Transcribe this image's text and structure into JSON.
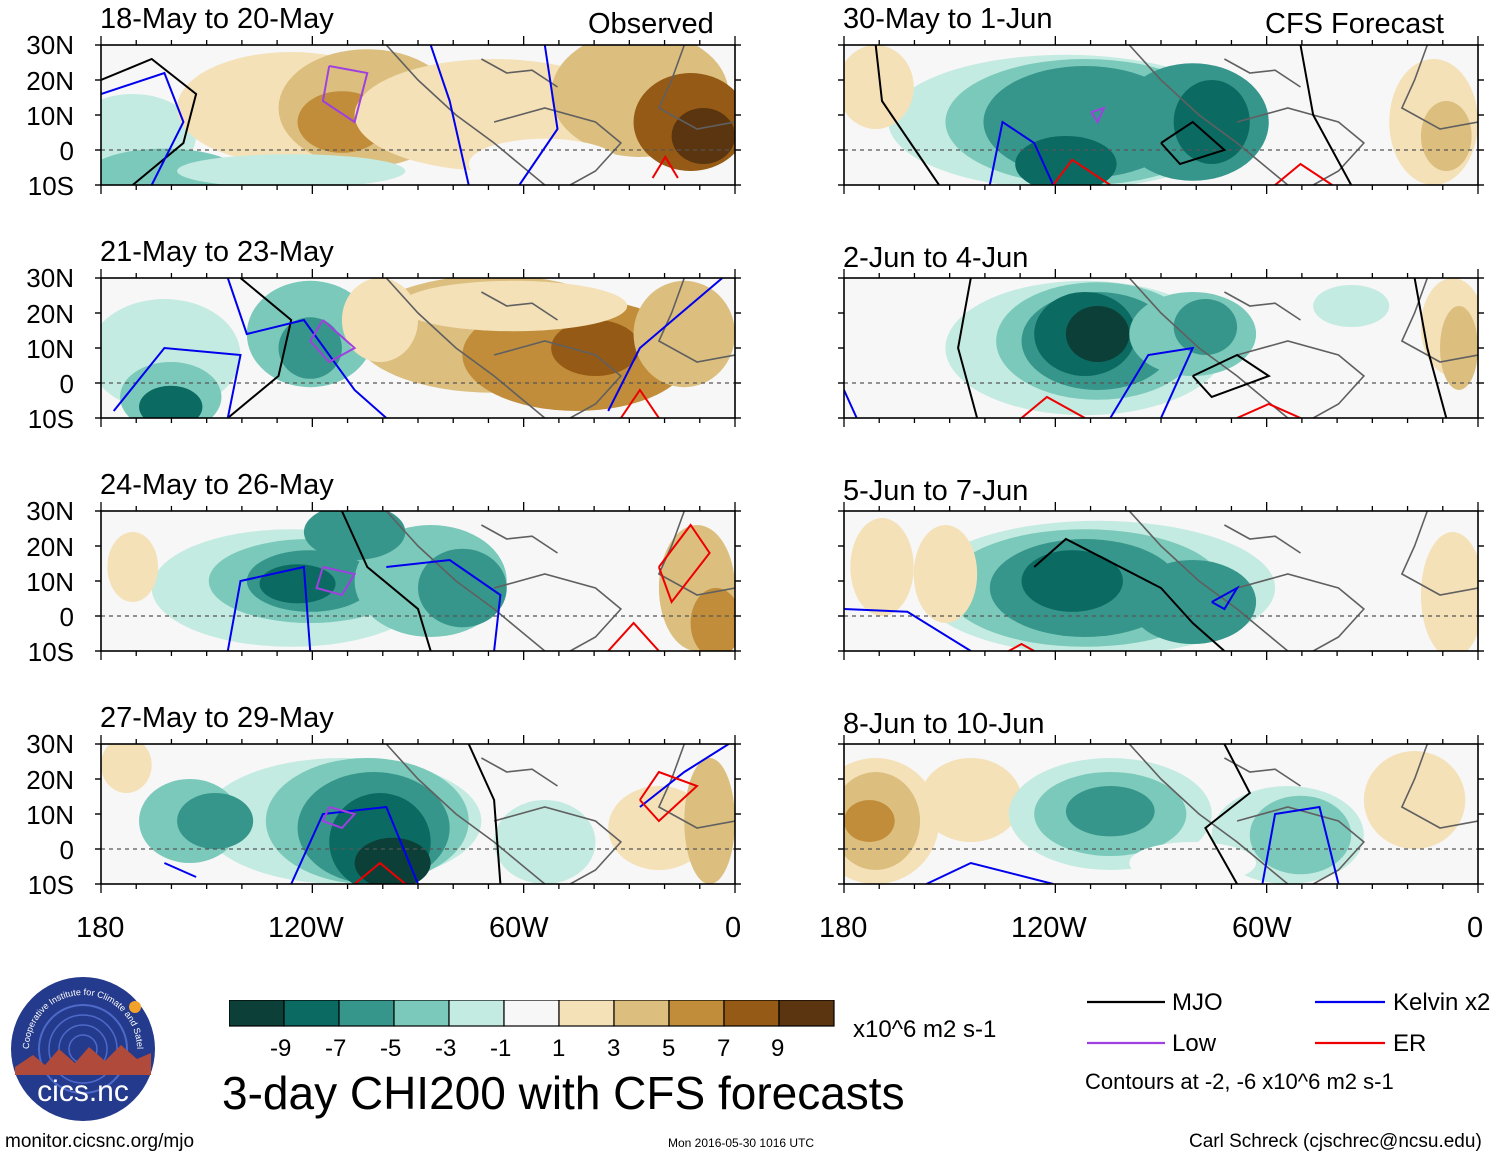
{
  "figure": {
    "title": "3-day CHI200 with CFS forecasts",
    "source_url": "monitor.cicsnc.org/mjo",
    "timestamp": "Mon 2016-05-30 1016 UTC",
    "author": "Carl Schreck (cjschrec@ncsu.edu)",
    "logo": {
      "text": "cics.nc",
      "ring_text": "Cooperative Institute for Climate and Satellites"
    }
  },
  "columns": {
    "left_label": "Observed",
    "right_label": "CFS Forecast"
  },
  "lat_labels": [
    "30N",
    "20N",
    "10N",
    "0",
    "10S"
  ],
  "lon_labels": [
    "180",
    "120W",
    "60W",
    "0"
  ],
  "panels": [
    {
      "title": "18-May to 20-May",
      "column": "observed"
    },
    {
      "title": "21-May to 23-May",
      "column": "observed"
    },
    {
      "title": "24-May to 26-May",
      "column": "observed"
    },
    {
      "title": "27-May to 29-May",
      "column": "observed"
    },
    {
      "title": "30-May to 1-Jun",
      "column": "forecast"
    },
    {
      "title": "2-Jun to 4-Jun",
      "column": "forecast"
    },
    {
      "title": "5-Jun to 7-Jun",
      "column": "forecast"
    },
    {
      "title": "8-Jun to 10-Jun",
      "column": "forecast"
    }
  ],
  "colorbar": {
    "unit": "x10^6 m2 s-1",
    "tick_labels": [
      "-9",
      "-7",
      "-5",
      "-3",
      "-1",
      "1",
      "3",
      "5",
      "7",
      "9"
    ],
    "colors": [
      "#0c3f37",
      "#0b6b62",
      "#37968b",
      "#7bc9bb",
      "#c4ebe1",
      "#f7f7f7",
      "#f4e1b8",
      "#dcbf7f",
      "#c18d3a",
      "#955a15",
      "#5a3510"
    ]
  },
  "legend": {
    "items": [
      {
        "label": "MJO",
        "color": "#000000"
      },
      {
        "label": "Kelvin x2",
        "color": "#0000ee"
      },
      {
        "label": "Low",
        "color": "#a040e0"
      },
      {
        "label": "ER",
        "color": "#ee0000"
      }
    ],
    "note": "Contours at -2, -6 x10^6 m2 s-1"
  }
}
